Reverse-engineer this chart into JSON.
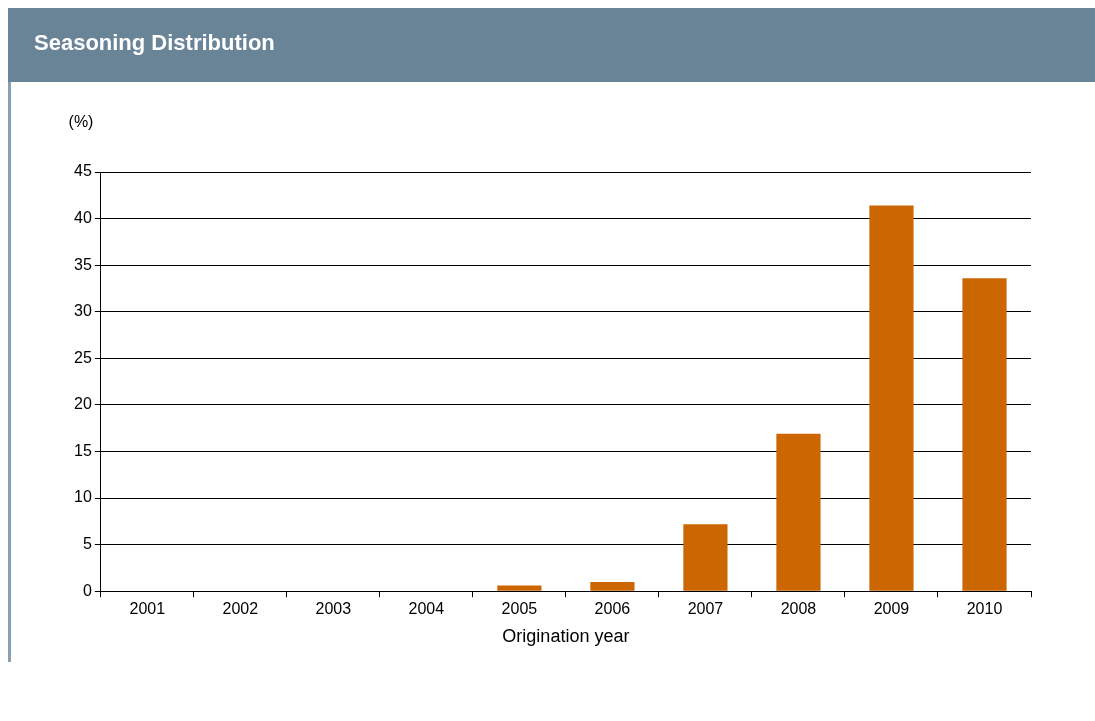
{
  "chart_data": {
    "type": "bar",
    "title": "Seasoning Distribution",
    "ylabel": "(%)",
    "xlabel": "Origination year",
    "categories": [
      "2001",
      "2002",
      "2003",
      "2004",
      "2005",
      "2006",
      "2007",
      "2008",
      "2009",
      "2010"
    ],
    "values": [
      0,
      0,
      0,
      0,
      0.6,
      1.0,
      7.2,
      16.9,
      41.4,
      33.6
    ],
    "color": "#cc6600",
    "ylim": [
      0,
      45
    ],
    "yticks": [
      0,
      5,
      10,
      15,
      20,
      25,
      30,
      35,
      40,
      45
    ],
    "grid": "y",
    "legend": false
  }
}
